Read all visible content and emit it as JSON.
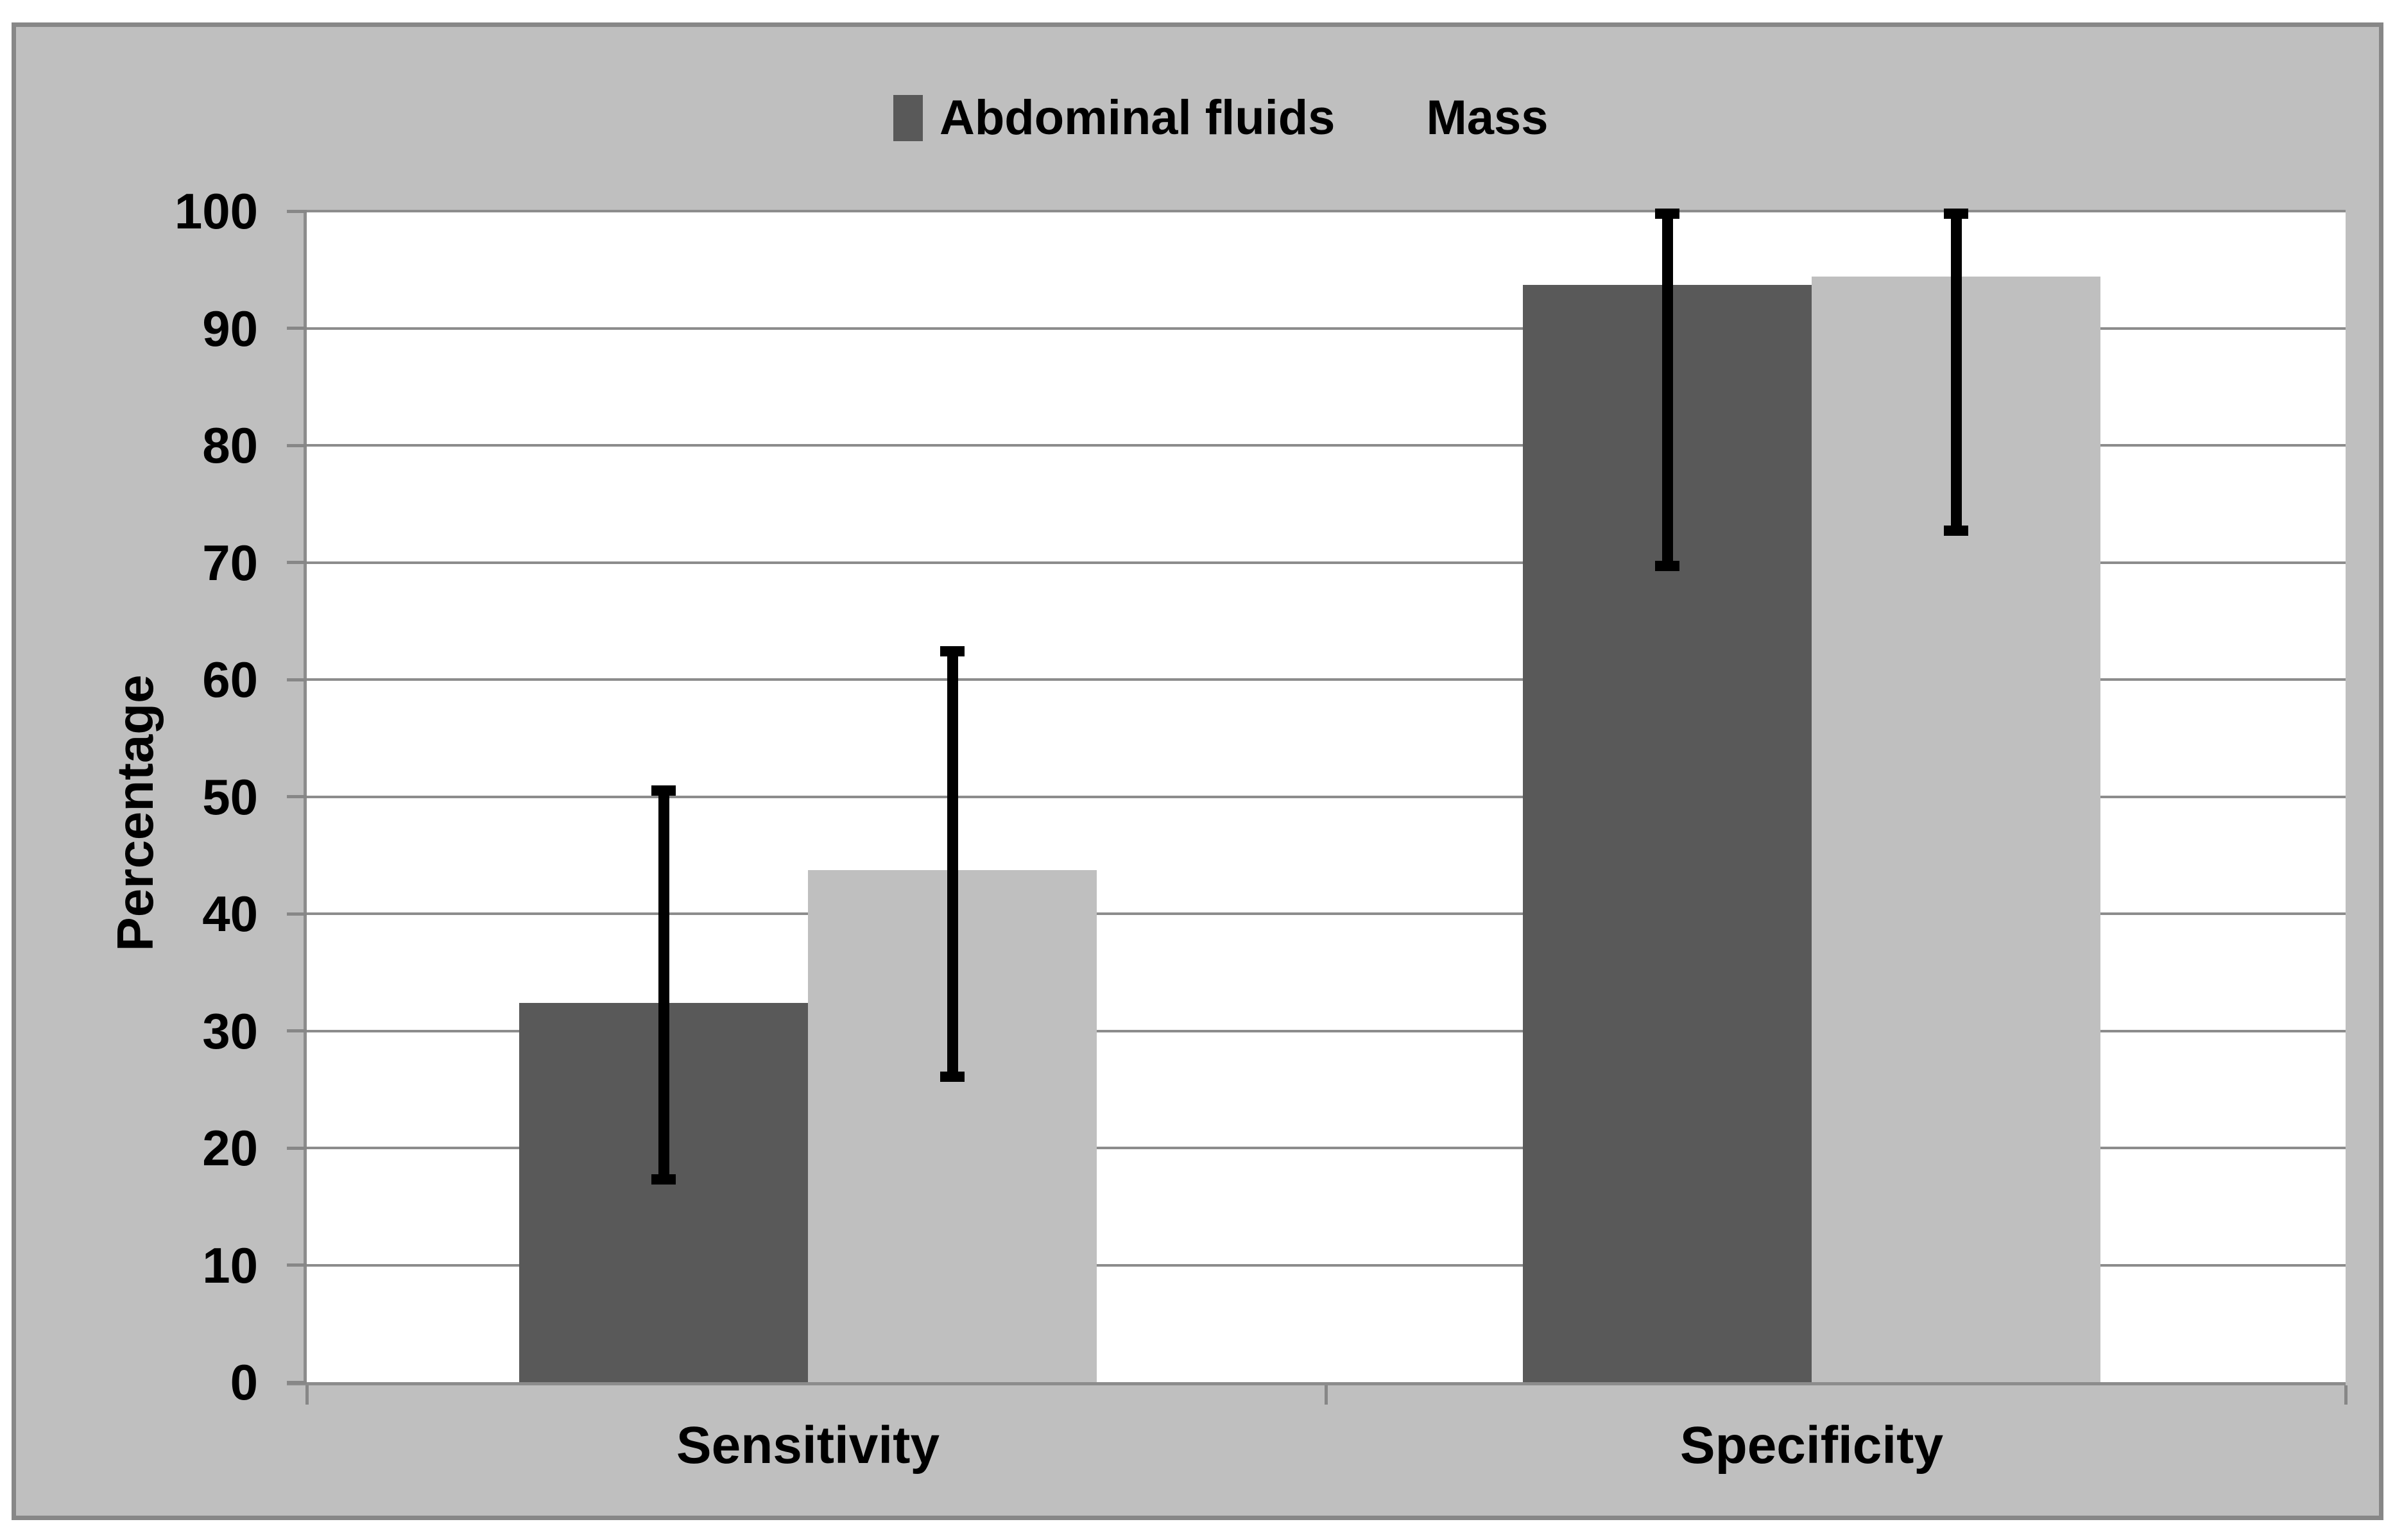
{
  "chart_data": {
    "type": "bar",
    "title": "",
    "categories": [
      "Sensitivity",
      "Specificity"
    ],
    "series": [
      {
        "name": "Abdominal fluids",
        "color": "#595959",
        "values": [
          32.4,
          93.7
        ],
        "error_low": [
          17.3,
          69.7
        ],
        "error_high": [
          50.5,
          99.8
        ]
      },
      {
        "name": "Mass",
        "color": "#bfbfbf",
        "values": [
          43.7,
          94.4
        ],
        "error_low": [
          26.1,
          72.7
        ],
        "error_high": [
          62.4,
          99.8
        ]
      }
    ],
    "xlabel": "",
    "ylabel": "Percentage",
    "ylim": [
      0,
      100
    ],
    "yticks": [
      0,
      10,
      20,
      30,
      40,
      50,
      60,
      70,
      80,
      90,
      100
    ],
    "grid": "horizontal",
    "legend_position": "top-center",
    "error_bars": true
  },
  "colors": {
    "page_bg": "#ffffff",
    "chart_bg": "#bfbfbf",
    "plot_bg": "#ffffff",
    "gridline": "#8c8c8c",
    "axis": "#8c8c8c",
    "frame_border": "#878787",
    "error_bar": "#000000",
    "text": "#000000"
  }
}
